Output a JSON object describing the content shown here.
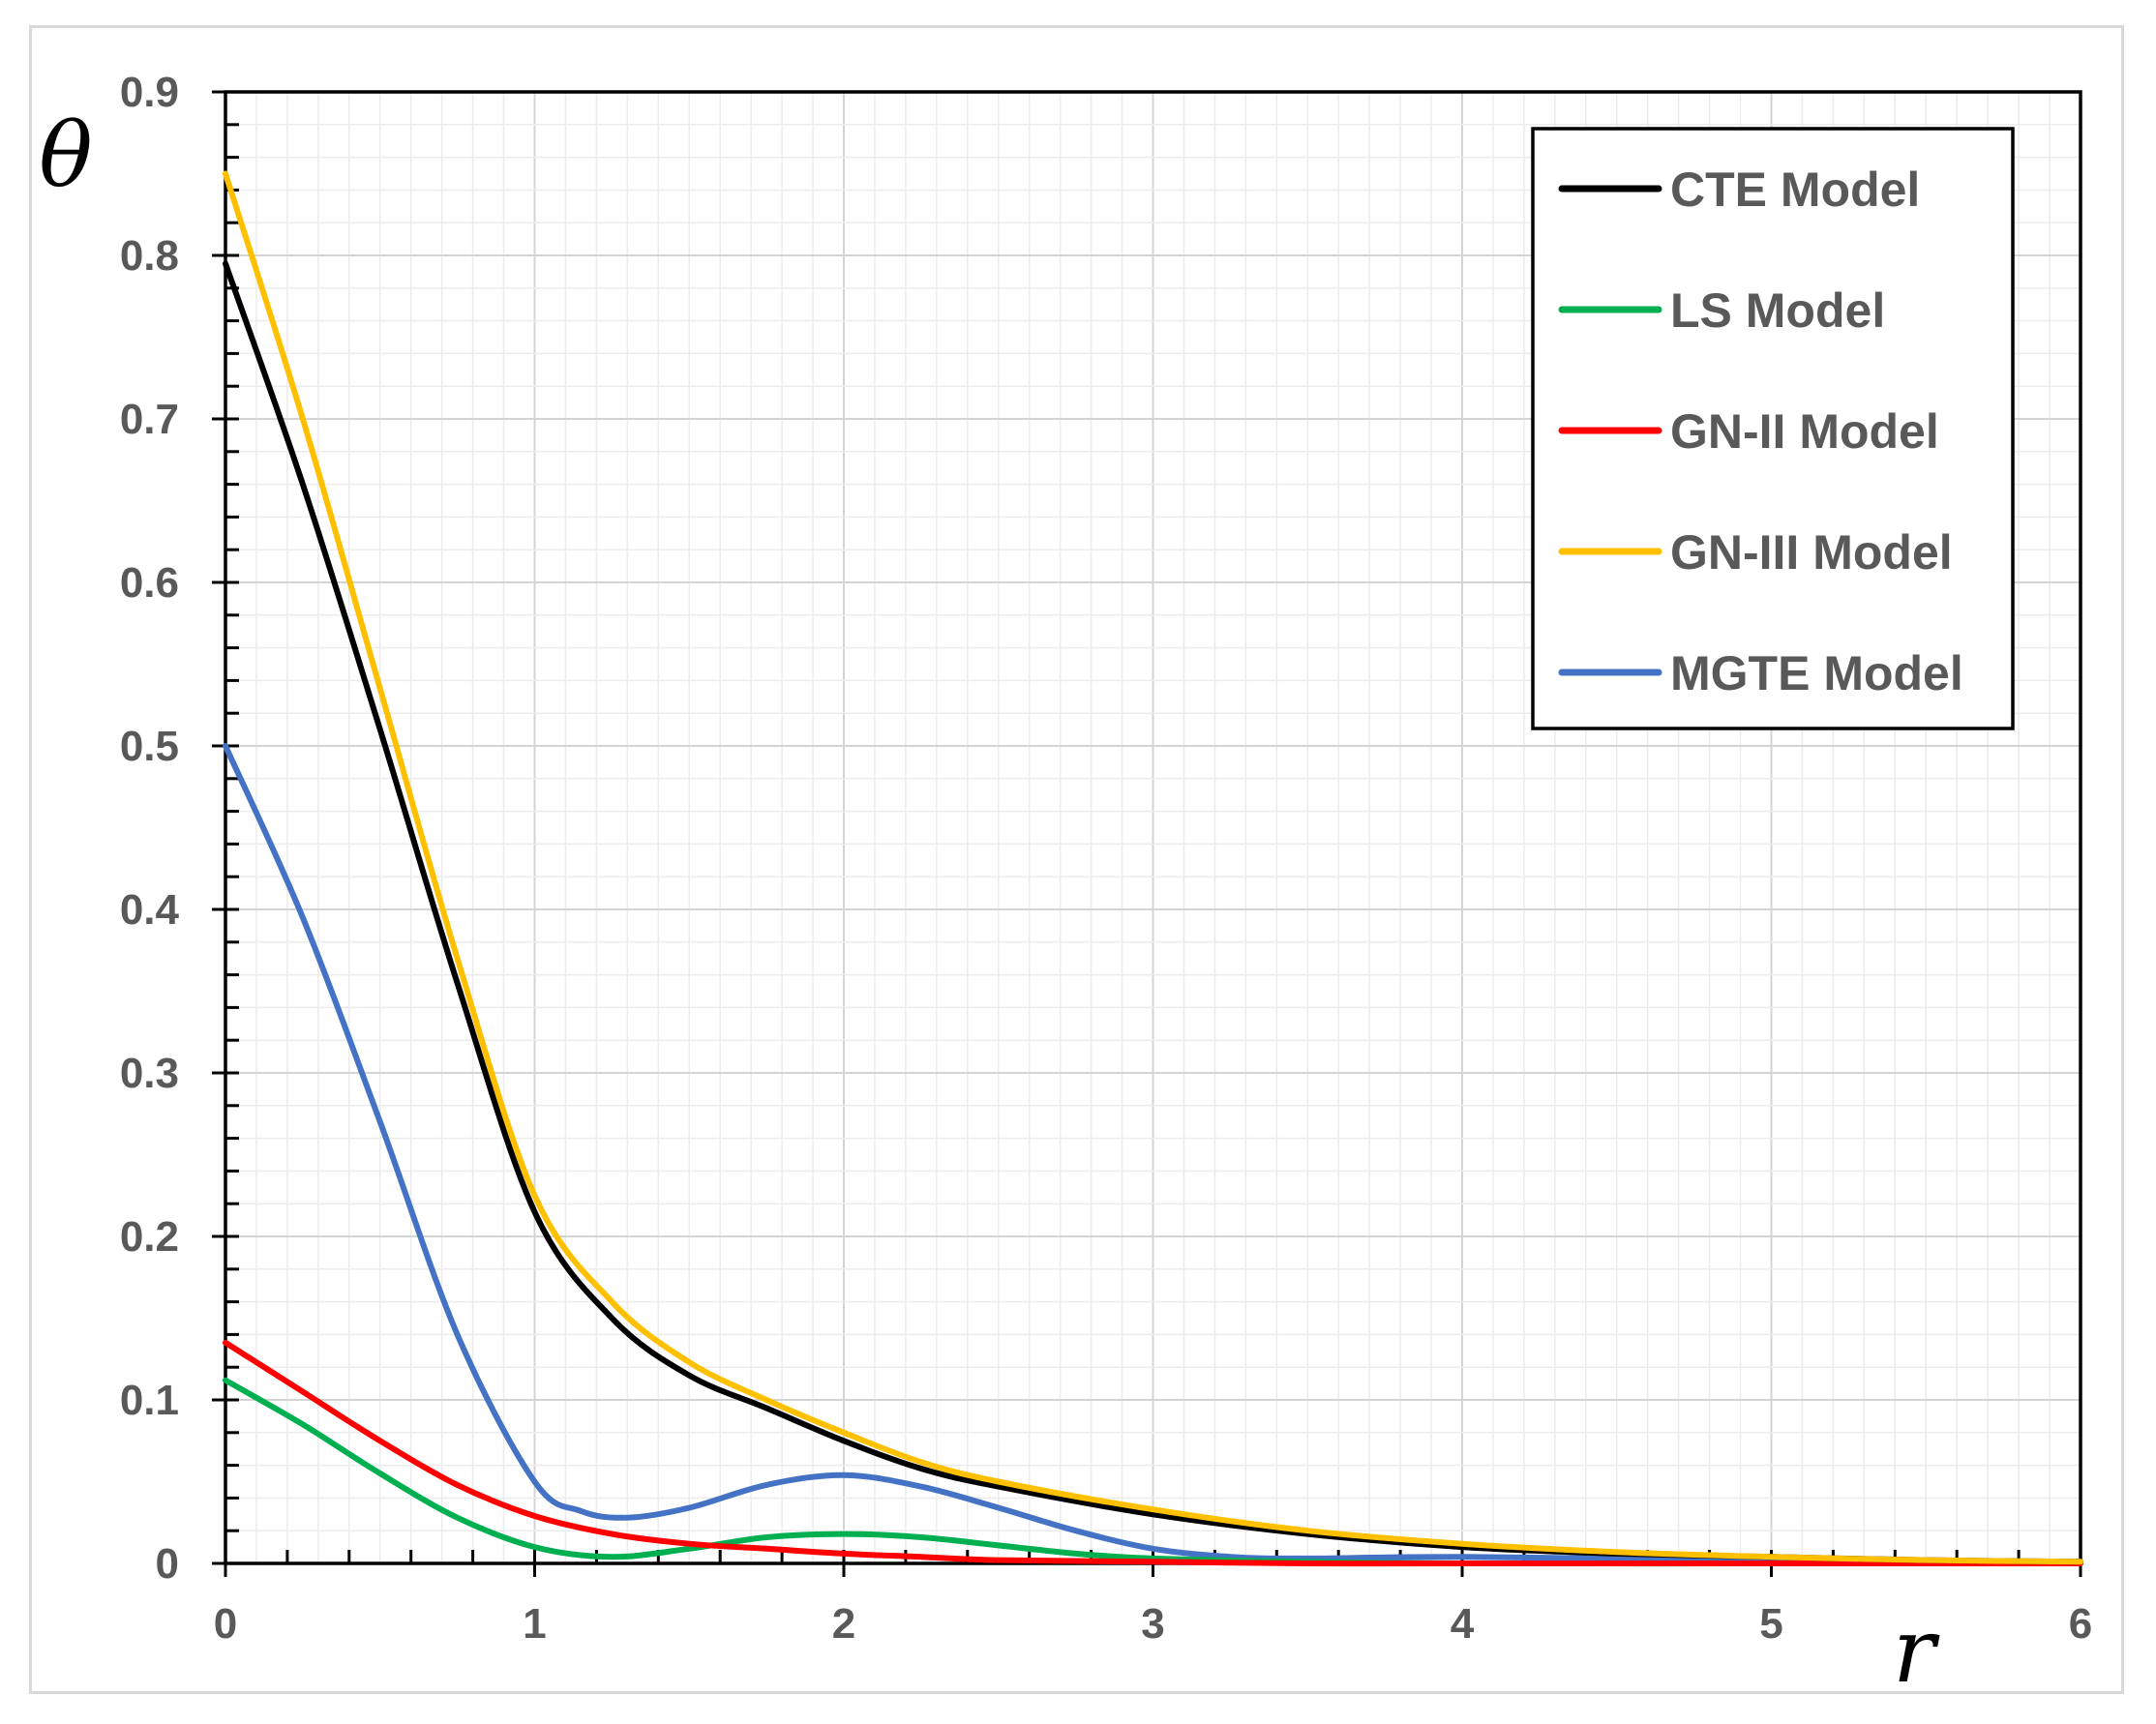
{
  "chart_data": {
    "type": "line",
    "title": "",
    "xlabel": "r",
    "ylabel": "θ",
    "xlim": [
      0,
      6
    ],
    "ylim": [
      0,
      0.9
    ],
    "x_ticks": [
      "0",
      "1",
      "2",
      "3",
      "4",
      "5",
      "6"
    ],
    "y_ticks": [
      "0",
      "0.1",
      "0.2",
      "0.3",
      "0.4",
      "0.5",
      "0.6",
      "0.7",
      "0.8",
      "0.9"
    ],
    "grid": true,
    "legend_position": "top-right",
    "series": [
      {
        "name": "CTE Model",
        "color": "#000000",
        "x": [
          0,
          0.25,
          0.5,
          0.75,
          1.0,
          1.25,
          1.5,
          1.75,
          2.0,
          2.25,
          2.5,
          3.0,
          3.5,
          4.0,
          4.5,
          5.0,
          5.5,
          6.0
        ],
        "y": [
          0.795,
          0.66,
          0.51,
          0.355,
          0.215,
          0.15,
          0.115,
          0.095,
          0.075,
          0.058,
          0.047,
          0.03,
          0.018,
          0.01,
          0.006,
          0.004,
          0.002,
          0.001
        ]
      },
      {
        "name": "LS Model",
        "color": "#00b050",
        "x": [
          0,
          0.25,
          0.5,
          0.75,
          1.0,
          1.25,
          1.5,
          1.75,
          2.0,
          2.25,
          2.5,
          2.75,
          3.0,
          3.5,
          4.0,
          5.0,
          6.0
        ],
        "y": [
          0.112,
          0.085,
          0.055,
          0.028,
          0.01,
          0.004,
          0.009,
          0.016,
          0.018,
          0.016,
          0.011,
          0.006,
          0.003,
          0.001,
          0.0,
          0.0,
          0.0
        ]
      },
      {
        "name": "GN-II Model",
        "color": "#ff0000",
        "x": [
          0,
          0.25,
          0.5,
          0.75,
          1.0,
          1.25,
          1.5,
          1.75,
          2.0,
          2.25,
          2.5,
          3.0,
          3.5,
          4.0,
          5.0,
          6.0
        ],
        "y": [
          0.135,
          0.105,
          0.075,
          0.048,
          0.029,
          0.018,
          0.012,
          0.009,
          0.006,
          0.004,
          0.002,
          0.001,
          0.0,
          0.0,
          0.0,
          0.0
        ]
      },
      {
        "name": "GN-III Model",
        "color": "#ffc000",
        "x": [
          0,
          0.25,
          0.5,
          0.75,
          1.0,
          1.25,
          1.5,
          1.75,
          2.0,
          2.25,
          2.5,
          3.0,
          3.5,
          4.0,
          4.5,
          5.0,
          5.5,
          6.0
        ],
        "y": [
          0.85,
          0.7,
          0.535,
          0.37,
          0.225,
          0.16,
          0.123,
          0.1,
          0.08,
          0.062,
          0.05,
          0.033,
          0.02,
          0.012,
          0.007,
          0.004,
          0.002,
          0.001
        ]
      },
      {
        "name": "MGTE Model",
        "color": "#4472c4",
        "x": [
          0,
          0.25,
          0.5,
          0.75,
          1.0,
          1.15,
          1.3,
          1.5,
          1.75,
          2.0,
          2.25,
          2.5,
          2.75,
          3.0,
          3.25,
          3.5,
          4.0,
          5.0,
          6.0
        ],
        "y": [
          0.5,
          0.395,
          0.27,
          0.14,
          0.05,
          0.032,
          0.028,
          0.034,
          0.048,
          0.054,
          0.047,
          0.034,
          0.02,
          0.009,
          0.004,
          0.003,
          0.004,
          0.002,
          0.001
        ]
      }
    ]
  }
}
